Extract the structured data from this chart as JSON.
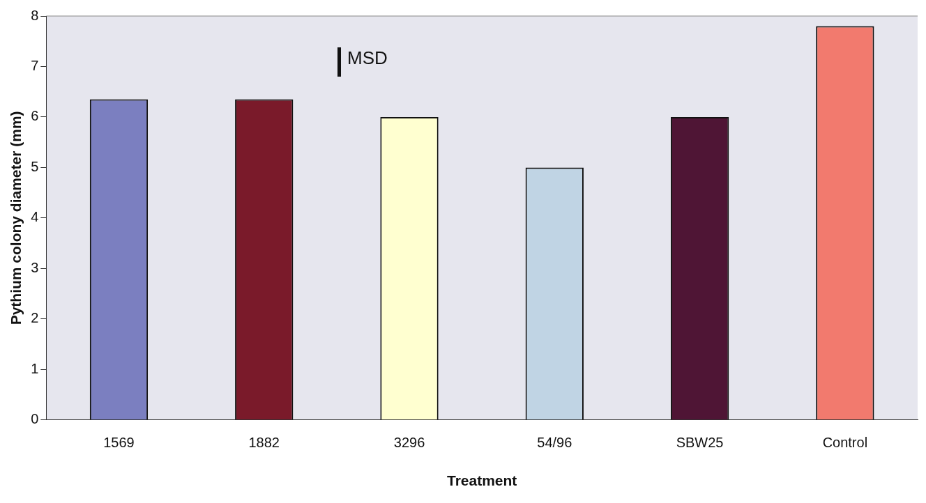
{
  "chart_data": {
    "type": "bar",
    "xlabel": "Treatment",
    "ylabel": "Pythium colony diameter (mm)",
    "categories": [
      "1569",
      "1882",
      "3296",
      "54/96",
      "SBW25",
      "Control"
    ],
    "values": [
      6.35,
      6.35,
      6.0,
      5.0,
      6.0,
      7.8
    ],
    "colors": [
      "#7b7fc0",
      "#7a1a2a",
      "#ffffd0",
      "#c0d4e4",
      "#4f1535",
      "#f27a6e"
    ],
    "ylim": [
      0,
      8
    ],
    "yticks": [
      0,
      1,
      2,
      3,
      4,
      5,
      6,
      7,
      8
    ],
    "grid": false,
    "legend": false,
    "annotations": [
      "MSD"
    ]
  }
}
